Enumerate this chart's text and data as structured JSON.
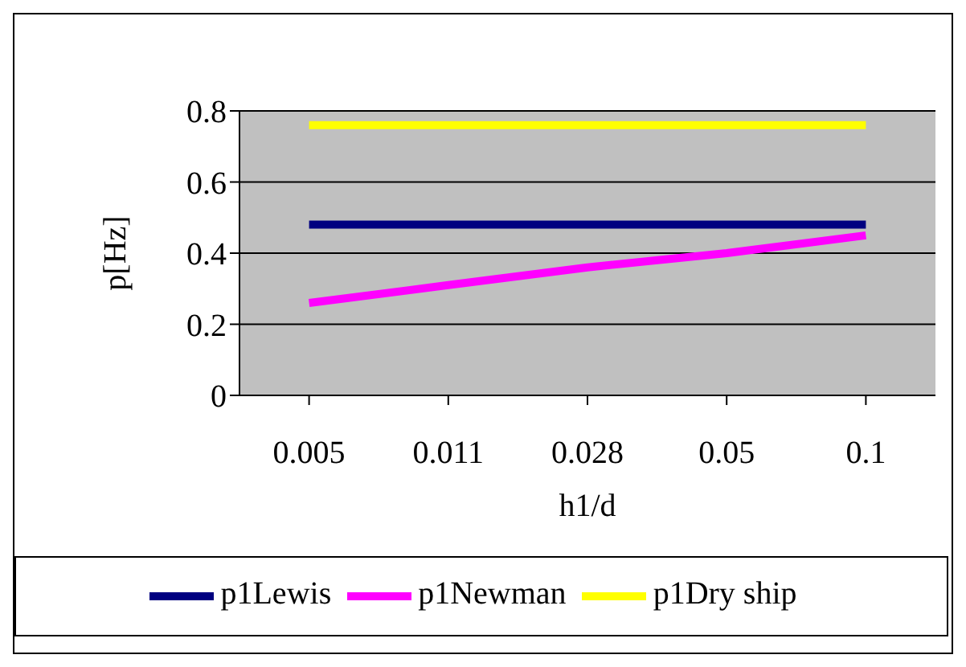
{
  "chart_data": {
    "type": "line",
    "ylabel": "p[Hz]",
    "xlabel": "h1/d",
    "categories": [
      "0.005",
      "0.011",
      "0.028",
      "0.05",
      "0.1"
    ],
    "series": [
      {
        "name": "p1Lewis",
        "color": "#000080",
        "values": [
          0.48,
          0.48,
          0.48,
          0.48,
          0.48
        ]
      },
      {
        "name": "p1Newman",
        "color": "#ff00ff",
        "values": [
          0.26,
          0.31,
          0.36,
          0.4,
          0.45
        ]
      },
      {
        "name": "p1Dry ship",
        "color": "#ffff00",
        "values": [
          0.76,
          0.76,
          0.76,
          0.76,
          0.76
        ]
      }
    ],
    "ylim": [
      0,
      0.8
    ],
    "yticks": [
      0,
      0.2,
      0.4,
      0.6,
      0.8
    ],
    "grid": "y",
    "legend": "bottom",
    "marker": "none",
    "line_style": "solid"
  }
}
